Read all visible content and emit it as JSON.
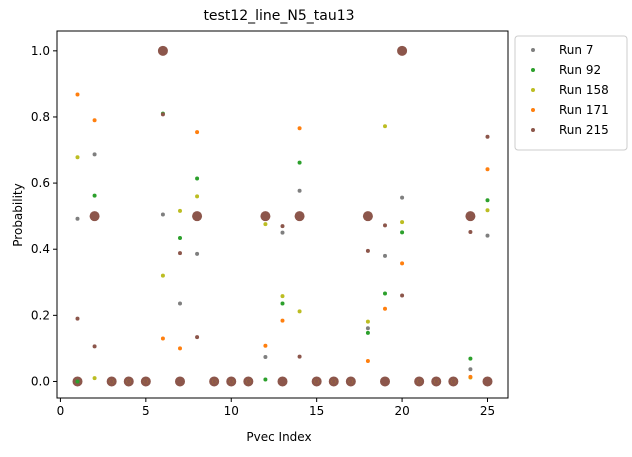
{
  "chart_data": {
    "type": "scatter",
    "title": "test12_line_N5_tau13",
    "xlabel": "Pvec Index",
    "ylabel": "Probability",
    "xlim": [
      -0.2,
      26.2
    ],
    "ylim": [
      -0.05,
      1.06
    ],
    "x_ticks": [
      0,
      5,
      10,
      15,
      20,
      25
    ],
    "y_ticks": [
      0.0,
      0.2,
      0.4,
      0.6,
      0.8,
      1.0
    ],
    "x_tick_labels": [
      "0",
      "5",
      "10",
      "15",
      "20",
      "25"
    ],
    "y_tick_labels": [
      "0.0",
      "0.2",
      "0.4",
      "0.6",
      "0.8",
      "1.0"
    ],
    "grid": false,
    "legend_position": "outside-upper-right",
    "series": [
      {
        "name": "Run 7",
        "color": "#7f7f7f",
        "points": [
          [
            1,
            0.492
          ],
          [
            2,
            0.687
          ],
          [
            3,
            0
          ],
          [
            4,
            0
          ],
          [
            5,
            0
          ],
          [
            6,
            0.505
          ],
          [
            7,
            0.236
          ],
          [
            8,
            0.386
          ],
          [
            9,
            0
          ],
          [
            10,
            0
          ],
          [
            11,
            0
          ],
          [
            12,
            0.074
          ],
          [
            13,
            0.45
          ],
          [
            14,
            0.577
          ],
          [
            15,
            0
          ],
          [
            16,
            0
          ],
          [
            17,
            0
          ],
          [
            18,
            0.161
          ],
          [
            19,
            0.38
          ],
          [
            20,
            0.556
          ],
          [
            21,
            0
          ],
          [
            22,
            0
          ],
          [
            23,
            0
          ],
          [
            24,
            0.037
          ],
          [
            25,
            0.441
          ]
        ]
      },
      {
        "name": "Run 92",
        "color": "#2ca02c",
        "points": [
          [
            1,
            0
          ],
          [
            2,
            0.562
          ],
          [
            3,
            0
          ],
          [
            4,
            0
          ],
          [
            5,
            0
          ],
          [
            6,
            0.81
          ],
          [
            7,
            0.434
          ],
          [
            8,
            0.614
          ],
          [
            9,
            0
          ],
          [
            10,
            0
          ],
          [
            11,
            0
          ],
          [
            12,
            0.006
          ],
          [
            13,
            0.236
          ],
          [
            14,
            0.662
          ],
          [
            15,
            0
          ],
          [
            16,
            0
          ],
          [
            17,
            0
          ],
          [
            18,
            0.147
          ],
          [
            19,
            0.266
          ],
          [
            20,
            0.451
          ],
          [
            21,
            0
          ],
          [
            22,
            0
          ],
          [
            23,
            0
          ],
          [
            24,
            0.069
          ],
          [
            25,
            0.548
          ]
        ]
      },
      {
        "name": "Run 158",
        "color": "#bcbd22",
        "points": [
          [
            1,
            0.678
          ],
          [
            2,
            0.01
          ],
          [
            3,
            0
          ],
          [
            4,
            0
          ],
          [
            5,
            0
          ],
          [
            6,
            0.32
          ],
          [
            7,
            0.516
          ],
          [
            8,
            0.56
          ],
          [
            9,
            0
          ],
          [
            10,
            0
          ],
          [
            11,
            0
          ],
          [
            12,
            0.476
          ],
          [
            13,
            0.258
          ],
          [
            14,
            0.212
          ],
          [
            15,
            0
          ],
          [
            16,
            0
          ],
          [
            17,
            0
          ],
          [
            18,
            0.181
          ],
          [
            19,
            0.772
          ],
          [
            20,
            0.482
          ],
          [
            21,
            0
          ],
          [
            22,
            0
          ],
          [
            23,
            0
          ],
          [
            24,
            0.012
          ],
          [
            25,
            0.518
          ]
        ]
      },
      {
        "name": "Run 171",
        "color": "#ff7f0e",
        "points": [
          [
            1,
            0.868
          ],
          [
            2,
            0.79
          ],
          [
            3,
            0
          ],
          [
            4,
            0
          ],
          [
            5,
            0
          ],
          [
            6,
            0.13
          ],
          [
            7,
            0.1
          ],
          [
            8,
            0.754
          ],
          [
            9,
            0
          ],
          [
            10,
            0
          ],
          [
            11,
            0
          ],
          [
            12,
            0.108
          ],
          [
            13,
            0.184
          ],
          [
            14,
            0.766
          ],
          [
            15,
            0
          ],
          [
            16,
            0
          ],
          [
            17,
            0
          ],
          [
            18,
            0.062
          ],
          [
            19,
            0.22
          ],
          [
            20,
            0.357
          ],
          [
            21,
            0
          ],
          [
            22,
            0
          ],
          [
            23,
            0
          ],
          [
            24,
            0.014
          ],
          [
            25,
            0.642
          ]
        ]
      },
      {
        "name": "Run 215",
        "color": "#8c564b",
        "points": [
          [
            1,
            0.19
          ],
          [
            2,
            0.106
          ],
          [
            3,
            0
          ],
          [
            4,
            0
          ],
          [
            5,
            0
          ],
          [
            6,
            0.808
          ],
          [
            7,
            0.388
          ],
          [
            8,
            0.134
          ],
          [
            9,
            0
          ],
          [
            10,
            0
          ],
          [
            11,
            0
          ],
          [
            12,
            0.5
          ],
          [
            13,
            0.47
          ],
          [
            14,
            0.075
          ],
          [
            15,
            0
          ],
          [
            16,
            0
          ],
          [
            17,
            0
          ],
          [
            18,
            0.395
          ],
          [
            19,
            0.472
          ],
          [
            20,
            0.26
          ],
          [
            21,
            0
          ],
          [
            22,
            0
          ],
          [
            23,
            0
          ],
          [
            24,
            0.452
          ],
          [
            25,
            0.74
          ]
        ]
      }
    ],
    "highlight_points": [
      [
        1,
        0
      ],
      [
        2,
        0.5
      ],
      [
        3,
        0
      ],
      [
        4,
        0
      ],
      [
        5,
        0
      ],
      [
        6,
        1.0
      ],
      [
        7,
        0
      ],
      [
        8,
        0.5
      ],
      [
        9,
        0
      ],
      [
        10,
        0
      ],
      [
        11,
        0
      ],
      [
        12,
        0.5
      ],
      [
        13,
        0
      ],
      [
        14,
        0.5
      ],
      [
        15,
        0
      ],
      [
        16,
        0
      ],
      [
        17,
        0
      ],
      [
        18,
        0.5
      ],
      [
        19,
        0
      ],
      [
        20,
        1.0
      ],
      [
        21,
        0
      ],
      [
        22,
        0
      ],
      [
        23,
        0
      ],
      [
        24,
        0.5
      ],
      [
        25,
        0
      ]
    ],
    "highlight_color": "#8c564b"
  }
}
